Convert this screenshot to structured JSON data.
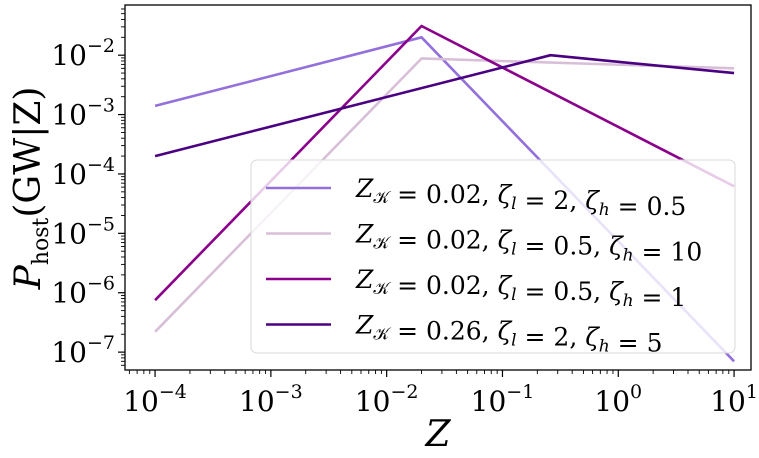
{
  "chart_data": {
    "type": "line",
    "xlabel": "Z",
    "ylabel_main": "P",
    "ylabel_sub": "host",
    "ylabel_rest": "(GW|Z)",
    "xscale": "log",
    "yscale": "log",
    "xlim": [
      5.5e-05,
      14
    ],
    "ylim": [
      5e-08,
      0.07
    ],
    "grid": false,
    "legend_position": "lower-right",
    "x_ticks": [
      {
        "value": 0.0001,
        "base": "10",
        "exp": "−4"
      },
      {
        "value": 0.001,
        "base": "10",
        "exp": "−3"
      },
      {
        "value": 0.01,
        "base": "10",
        "exp": "−2"
      },
      {
        "value": 0.1,
        "base": "10",
        "exp": "−1"
      },
      {
        "value": 1,
        "base": "10",
        "exp": "0"
      },
      {
        "value": 10,
        "base": "10",
        "exp": "1"
      }
    ],
    "y_ticks": [
      {
        "value": 1e-07,
        "base": "10",
        "exp": "−7"
      },
      {
        "value": 1e-06,
        "base": "10",
        "exp": "−6"
      },
      {
        "value": 1e-05,
        "base": "10",
        "exp": "−5"
      },
      {
        "value": 0.0001,
        "base": "10",
        "exp": "−4"
      },
      {
        "value": 0.001,
        "base": "10",
        "exp": "−3"
      },
      {
        "value": 0.01,
        "base": "10",
        "exp": "−2"
      }
    ],
    "series": [
      {
        "name": "Z_K = 0.02, ζ_l = 2, ζ_h = 0.5",
        "label": {
          "parts": [
            {
              "t": "Z",
              "i": true
            },
            {
              "t": "𝒦",
              "sub": true
            },
            {
              "t": " = 0.02, "
            },
            {
              "t": "ζ",
              "i": true
            },
            {
              "t": "l",
              "sub": true,
              "i": true
            },
            {
              "t": " = 2, "
            },
            {
              "t": "ζ",
              "i": true
            },
            {
              "t": "h",
              "sub": true,
              "i": true
            },
            {
              "t": " = 0.5"
            }
          ]
        },
        "color": "#9370DB",
        "x": [
          0.0001,
          0.02,
          10
        ],
        "y": [
          0.0014,
          0.02,
          7e-08
        ]
      },
      {
        "name": "Z_K = 0.02, ζ_l = 0.5, ζ_h = 10",
        "label": {
          "parts": [
            {
              "t": "Z",
              "i": true
            },
            {
              "t": "𝒦",
              "sub": true
            },
            {
              "t": " = 0.02, "
            },
            {
              "t": "ζ",
              "i": true
            },
            {
              "t": "l",
              "sub": true,
              "i": true
            },
            {
              "t": " = 0.5, "
            },
            {
              "t": "ζ",
              "i": true
            },
            {
              "t": "h",
              "sub": true,
              "i": true
            },
            {
              "t": " = 10"
            }
          ]
        },
        "color": "#D8BFD8",
        "x": [
          0.0001,
          0.02,
          10
        ],
        "y": [
          2.2e-07,
          0.0088,
          0.006
        ]
      },
      {
        "name": "Z_K = 0.02, ζ_l = 0.5, ζ_h = 1",
        "label": {
          "parts": [
            {
              "t": "Z",
              "i": true
            },
            {
              "t": "𝒦",
              "sub": true
            },
            {
              "t": " = 0.02, "
            },
            {
              "t": "ζ",
              "i": true
            },
            {
              "t": "l",
              "sub": true,
              "i": true
            },
            {
              "t": " = 0.5, "
            },
            {
              "t": "ζ",
              "i": true
            },
            {
              "t": "h",
              "sub": true,
              "i": true
            },
            {
              "t": " = 1"
            }
          ]
        },
        "color": "#8B008B",
        "x": [
          0.0001,
          0.02,
          10
        ],
        "y": [
          7.5e-07,
          0.031,
          6.2e-05
        ]
      },
      {
        "name": "Z_K = 0.26, ζ_l = 2, ζ_h = 5",
        "label": {
          "parts": [
            {
              "t": "Z",
              "i": true
            },
            {
              "t": "𝒦",
              "sub": true
            },
            {
              "t": " = 0.26, "
            },
            {
              "t": "ζ",
              "i": true
            },
            {
              "t": "l",
              "sub": true,
              "i": true
            },
            {
              "t": " = 2, "
            },
            {
              "t": "ζ",
              "i": true
            },
            {
              "t": "h",
              "sub": true,
              "i": true
            },
            {
              "t": " = 5"
            }
          ]
        },
        "color": "#4B0082",
        "x": [
          0.0001,
          0.26,
          10
        ],
        "y": [
          0.0002,
          0.01,
          0.005
        ]
      }
    ]
  }
}
